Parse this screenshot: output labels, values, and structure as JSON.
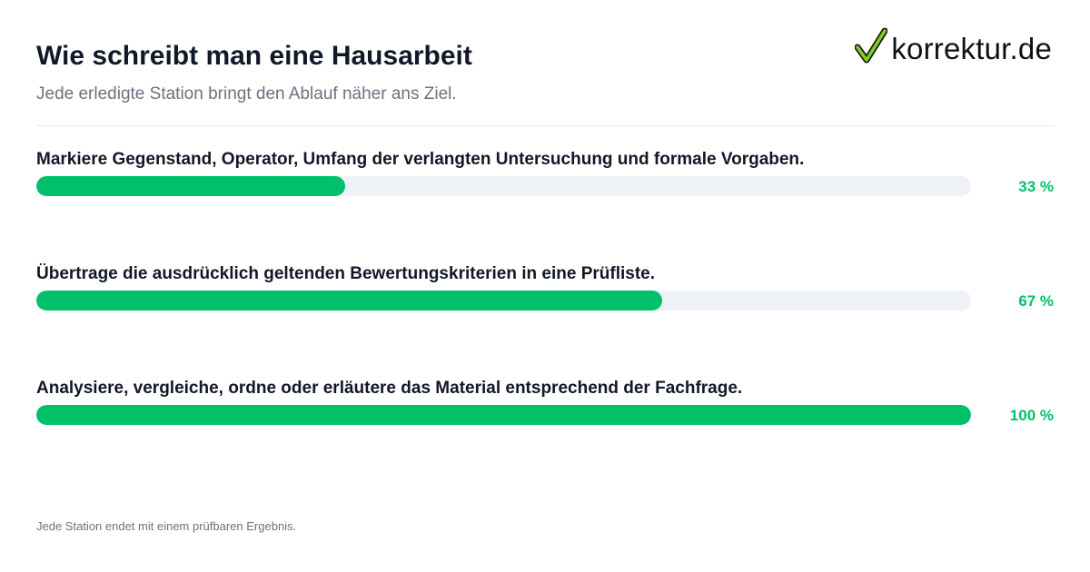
{
  "header": {
    "title": "Wie schreibt man eine Hausarbeit",
    "subtitle": "Jede erledigte Station bringt den Ablauf näher ans Ziel."
  },
  "logo": {
    "text": "korrektur.de",
    "icon": "checkmark-icon",
    "icon_color": "#7ed321"
  },
  "colors": {
    "accent": "#00c16a",
    "track": "#eef2f7",
    "title": "#111827",
    "muted": "#6b7280"
  },
  "chart_data": {
    "type": "bar",
    "orientation": "horizontal",
    "categories": [
      "Markiere Gegenstand, Operator, Umfang der verlangten Untersuchung und formale Vorgaben.",
      "Übertrage die ausdrücklich geltenden Bewertungskriterien in eine Prüfliste.",
      "Analysiere, vergleiche, ordne oder erläutere das Material entsprechend der Fachfrage."
    ],
    "values": [
      33,
      67,
      100
    ],
    "value_labels": [
      "33 %",
      "67 %",
      "100 %"
    ],
    "xlim": [
      0,
      100
    ]
  },
  "footer": {
    "note": "Jede Station endet mit einem prüfbaren Ergebnis."
  }
}
